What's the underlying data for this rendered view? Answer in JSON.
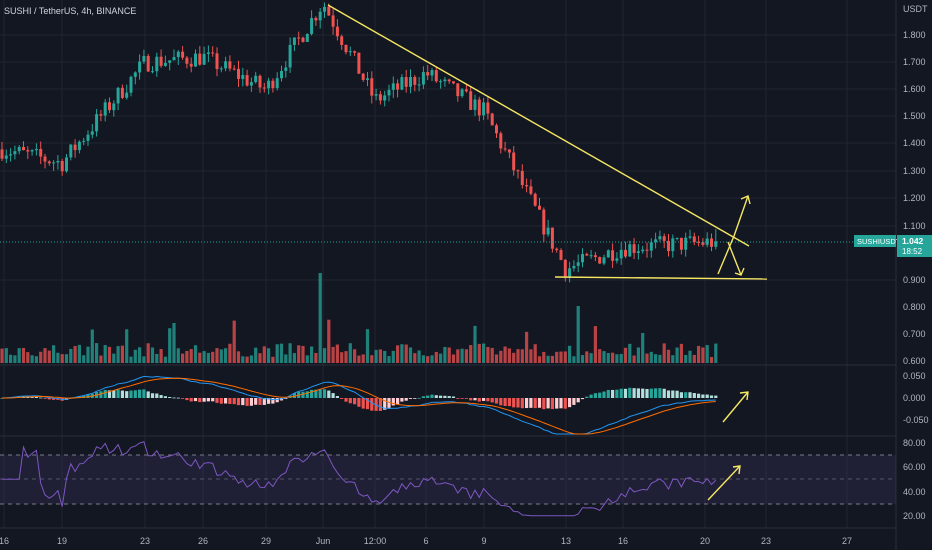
{
  "header": {
    "title": "SUSHI / TetherUS, 4h, BINANCE",
    "currency": "USDT"
  },
  "price_badge": {
    "symbol": "SUSHIUSDT",
    "price": "1.042",
    "countdown": "18:52"
  },
  "colors": {
    "background": "#131722",
    "up": "#26a69a",
    "down": "#ef5350",
    "trendline": "#f5e663",
    "macd_line": "#2196f3",
    "signal_line": "#ff6d00",
    "rsi_line": "#7e57c2",
    "axis_text": "#b2b5be",
    "grid": "#1f2430"
  },
  "chart_data": [
    {
      "type": "candlestick",
      "pane": "price",
      "ylim": [
        0.8,
        1.95
      ],
      "yticks": [
        "1.800",
        "1.700",
        "1.600",
        "1.500",
        "1.400",
        "1.300",
        "1.200",
        "1.100",
        "0.900"
      ],
      "xticks": [
        "16",
        "19",
        "23",
        "26",
        "29",
        "Jun",
        "12:00",
        "6",
        "9",
        "13",
        "16",
        "20",
        "23",
        "27"
      ],
      "current_price": 1.042,
      "approx_path": [
        {
          "x": "16",
          "close": 1.38
        },
        {
          "x": "19",
          "close": 1.33
        },
        {
          "x": "23",
          "close": 1.7
        },
        {
          "x": "26",
          "close": 1.72
        },
        {
          "x": "29",
          "close": 1.6
        },
        {
          "x": "Jun",
          "close": 1.92
        },
        {
          "x": "12:00",
          "close": 1.56
        },
        {
          "x": "6",
          "close": 1.66
        },
        {
          "x": "9",
          "close": 1.52
        },
        {
          "x": "13",
          "close": 0.94
        },
        {
          "x": "16",
          "close": 1.02
        },
        {
          "x": "20",
          "close": 1.04
        }
      ],
      "high": 1.92,
      "low": 0.87
    },
    {
      "type": "bar",
      "pane": "volume",
      "yticks": [
        "0.800",
        "0.700",
        "0.600"
      ]
    },
    {
      "type": "histogram+line",
      "pane": "macd",
      "yticks": [
        "0.050",
        "0.000",
        "-0.050"
      ]
    },
    {
      "type": "line",
      "pane": "rsi",
      "yticks": [
        "80.00",
        "60.00",
        "40.00",
        "20.00"
      ],
      "bands": [
        30,
        50,
        70
      ]
    }
  ]
}
